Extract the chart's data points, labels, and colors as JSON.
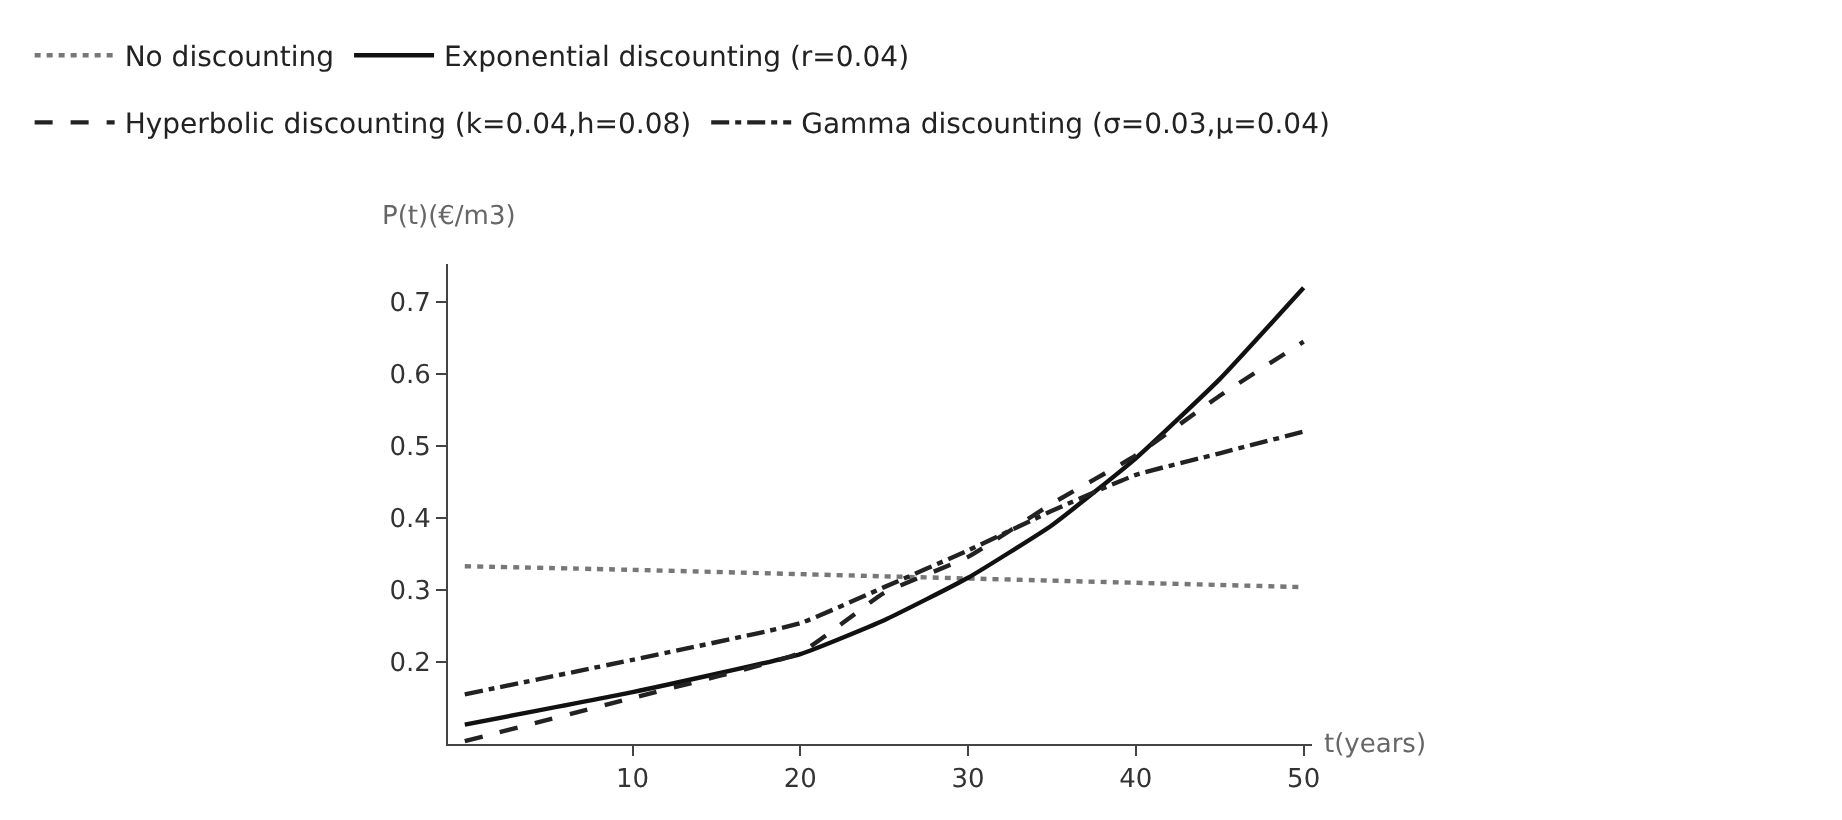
{
  "chart_data": {
    "type": "line",
    "xlabel": "t(years)",
    "ylabel": "P(t)(€/m3)",
    "x": [
      0,
      10,
      20,
      25,
      30,
      35,
      40,
      45,
      50
    ],
    "series": [
      {
        "name": "No discounting",
        "color": "#777777",
        "line_style": "dotted",
        "values": [
          0.333,
          0.328,
          0.322,
          0.319,
          0.316,
          0.313,
          0.31,
          0.307,
          0.304
        ]
      },
      {
        "name": "Exponential discounting (r=0.04)",
        "color": "#111111",
        "line_style": "solid",
        "values": [
          0.113,
          0.158,
          0.211,
          0.258,
          0.317,
          0.39,
          0.483,
          0.593,
          0.72
        ]
      },
      {
        "name": "Hyperbolic discounting (k=0.04,h=0.08)",
        "color": "#222222",
        "line_style": "dashed",
        "values": [
          0.09,
          0.15,
          0.213,
          0.296,
          0.346,
          0.42,
          0.487,
          0.57,
          0.645
        ]
      },
      {
        "name": "Gamma discounting (σ=0.03,μ=0.04)",
        "color": "#222222",
        "line_style": "dashdot",
        "values": [
          0.155,
          0.203,
          0.254,
          0.304,
          0.355,
          0.41,
          0.46,
          0.49,
          0.52
        ]
      }
    ],
    "xlim": [
      -1,
      50.5
    ],
    "ylim": [
      0.086,
      0.753
    ],
    "xticks": [
      10,
      20,
      30,
      40,
      50
    ],
    "yticks": [
      0.2,
      0.3,
      0.4,
      0.5,
      0.6,
      0.7
    ],
    "legend": "top",
    "marker": "none"
  }
}
